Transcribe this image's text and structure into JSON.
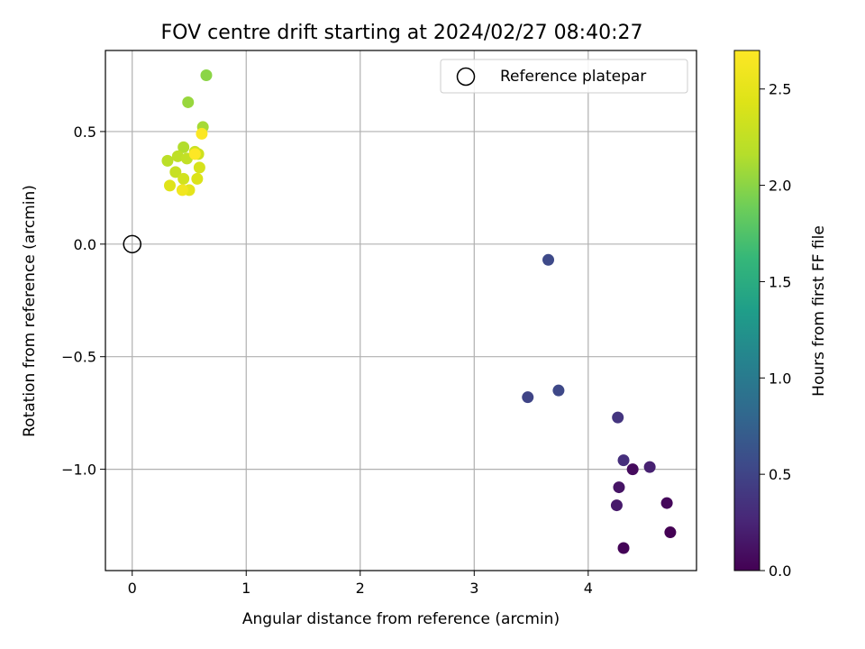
{
  "chart_data": {
    "type": "scatter",
    "title": "FOV centre drift starting at 2024/02/27 08:40:27",
    "xlabel": "Angular distance from reference (arcmin)",
    "ylabel": "Rotation from reference (arcmin)",
    "xlim": [
      -0.235,
      4.95
    ],
    "ylim": [
      -1.45,
      0.86
    ],
    "xticks": [
      0,
      1,
      2,
      3,
      4
    ],
    "yticks": [
      -1.0,
      -0.5,
      0.0,
      0.5
    ],
    "xtick_labels": [
      "0",
      "1",
      "2",
      "3",
      "4"
    ],
    "ytick_labels": [
      "−1.0",
      "−0.5",
      "0.0",
      "0.5"
    ],
    "grid": true,
    "legend": {
      "placement": "top-right",
      "entries": [
        "Reference platepar"
      ]
    },
    "reference_point": {
      "name": "Reference platepar",
      "x": 0.0,
      "y": 0.0
    },
    "colorbar": {
      "label": "Hours from first FF file",
      "colormap": "viridis",
      "range": [
        0.0,
        2.7
      ],
      "ticks": [
        0.0,
        0.5,
        1.0,
        1.5,
        2.0,
        2.5
      ],
      "tick_labels": [
        "0.0",
        "0.5",
        "1.0",
        "1.5",
        "2.0",
        "2.5"
      ]
    },
    "points": [
      {
        "x": 4.72,
        "y": -1.28,
        "c": 0.0
      },
      {
        "x": 4.31,
        "y": -1.35,
        "c": 0.02
      },
      {
        "x": 4.69,
        "y": -1.15,
        "c": 0.05
      },
      {
        "x": 4.39,
        "y": -1.0,
        "c": 0.07
      },
      {
        "x": 4.27,
        "y": -1.08,
        "c": 0.13
      },
      {
        "x": 4.25,
        "y": -1.16,
        "c": 0.17
      },
      {
        "x": 4.54,
        "y": -0.99,
        "c": 0.22
      },
      {
        "x": 4.31,
        "y": -0.96,
        "c": 0.33
      },
      {
        "x": 4.26,
        "y": -0.77,
        "c": 0.38
      },
      {
        "x": 3.47,
        "y": -0.68,
        "c": 0.5
      },
      {
        "x": 3.74,
        "y": -0.65,
        "c": 0.53
      },
      {
        "x": 3.65,
        "y": -0.07,
        "c": 0.55
      },
      {
        "x": 0.65,
        "y": 0.75,
        "c": 2.0
      },
      {
        "x": 0.49,
        "y": 0.63,
        "c": 2.05
      },
      {
        "x": 0.62,
        "y": 0.52,
        "c": 2.1
      },
      {
        "x": 0.45,
        "y": 0.43,
        "c": 2.15
      },
      {
        "x": 0.31,
        "y": 0.37,
        "c": 2.2
      },
      {
        "x": 0.4,
        "y": 0.39,
        "c": 2.22
      },
      {
        "x": 0.48,
        "y": 0.38,
        "c": 2.25
      },
      {
        "x": 0.55,
        "y": 0.41,
        "c": 2.3
      },
      {
        "x": 0.58,
        "y": 0.4,
        "c": 2.33
      },
      {
        "x": 0.38,
        "y": 0.32,
        "c": 2.28
      },
      {
        "x": 0.59,
        "y": 0.34,
        "c": 2.38
      },
      {
        "x": 0.45,
        "y": 0.29,
        "c": 2.35
      },
      {
        "x": 0.57,
        "y": 0.29,
        "c": 2.42
      },
      {
        "x": 0.33,
        "y": 0.26,
        "c": 2.45
      },
      {
        "x": 0.5,
        "y": 0.24,
        "c": 2.5
      },
      {
        "x": 0.44,
        "y": 0.24,
        "c": 2.6
      },
      {
        "x": 0.61,
        "y": 0.49,
        "c": 2.68
      },
      {
        "x": 0.55,
        "y": 0.4,
        "c": 2.7
      }
    ]
  }
}
